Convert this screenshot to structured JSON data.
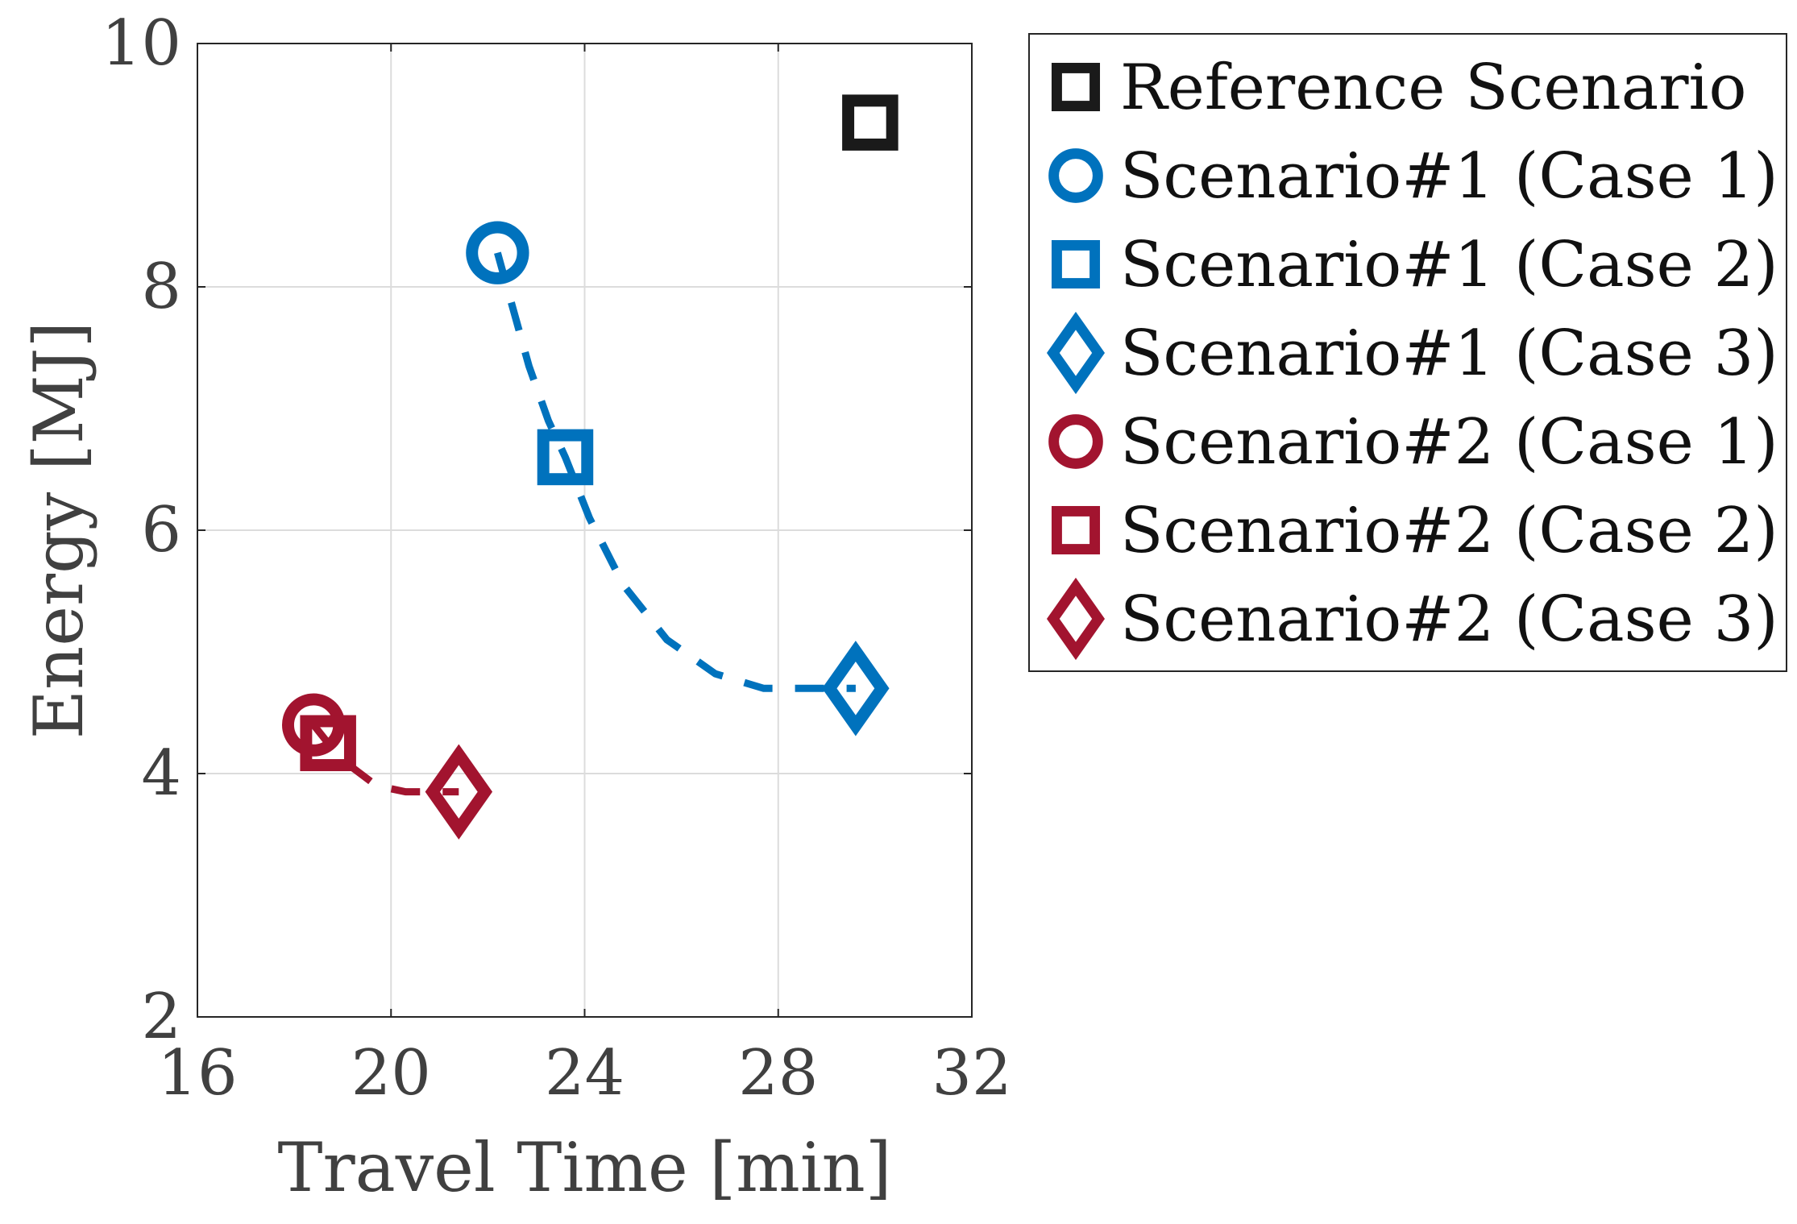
{
  "chart_data": {
    "type": "scatter",
    "title": "",
    "xlabel": "Travel Time [min]",
    "ylabel": "Energy [MJ]",
    "xlim": [
      16,
      32
    ],
    "ylim": [
      2,
      10
    ],
    "xticks": [
      16,
      20,
      24,
      28,
      32
    ],
    "yticks": [
      2,
      4,
      6,
      8,
      10
    ],
    "xtick_labels": [
      "16",
      "20",
      "24",
      "28",
      "32"
    ],
    "ytick_labels": [
      "2",
      "4",
      "6",
      "8",
      "10"
    ],
    "grid": true,
    "legend_position": "outside-right-top",
    "series": [
      {
        "name": "Reference Scenario",
        "marker": "square",
        "color": "#1a1a1a",
        "points": [
          {
            "x": 29.9,
            "y": 9.35
          }
        ]
      },
      {
        "name": "Scenario#1 (Case 1)",
        "marker": "circle",
        "color": "#0072bd",
        "points": [
          {
            "x": 22.2,
            "y": 8.28
          }
        ]
      },
      {
        "name": "Scenario#1 (Case 2)",
        "marker": "square",
        "color": "#0072bd",
        "points": [
          {
            "x": 23.6,
            "y": 6.6
          }
        ]
      },
      {
        "name": "Scenario#1 (Case 3)",
        "marker": "diamond",
        "color": "#0072bd",
        "points": [
          {
            "x": 29.6,
            "y": 4.7
          }
        ]
      },
      {
        "name": "Scenario#2 (Case 1)",
        "marker": "circle",
        "color": "#a2142f",
        "points": [
          {
            "x": 18.4,
            "y": 4.4
          }
        ]
      },
      {
        "name": "Scenario#2 (Case 2)",
        "marker": "square",
        "color": "#a2142f",
        "points": [
          {
            "x": 18.7,
            "y": 4.25
          }
        ]
      },
      {
        "name": "Scenario#2 (Case 3)",
        "marker": "diamond",
        "color": "#a2142f",
        "points": [
          {
            "x": 21.4,
            "y": 3.85
          }
        ]
      }
    ],
    "fit_lines": [
      {
        "color": "#0072bd",
        "style": "dashed",
        "points": [
          [
            22.2,
            8.28
          ],
          [
            22.5,
            7.85
          ],
          [
            22.85,
            7.35
          ],
          [
            23.25,
            6.9
          ],
          [
            23.6,
            6.6
          ],
          [
            24.1,
            6.1
          ],
          [
            24.8,
            5.55
          ],
          [
            25.7,
            5.1
          ],
          [
            26.7,
            4.82
          ],
          [
            27.7,
            4.7
          ],
          [
            29.6,
            4.7
          ]
        ]
      },
      {
        "color": "#a2142f",
        "style": "dashed",
        "points": [
          [
            18.4,
            4.4
          ],
          [
            18.7,
            4.25
          ],
          [
            19.2,
            4.05
          ],
          [
            19.7,
            3.9
          ],
          [
            20.3,
            3.85
          ],
          [
            21.4,
            3.85
          ]
        ]
      }
    ]
  }
}
